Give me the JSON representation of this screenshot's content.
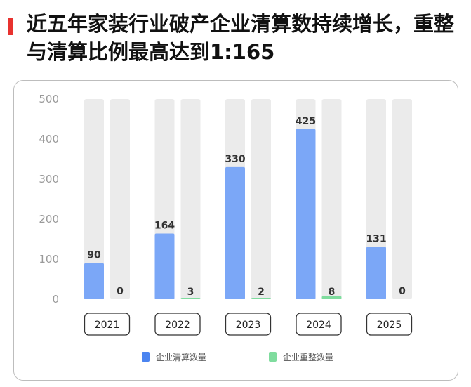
{
  "title": "近五年家装行业破产企业清算数持续增长，重整与清算比例最高达到1:165",
  "colors": {
    "accent": "#e8322f",
    "liquidation": "#7ba7f7",
    "reorganization": "#7fdc9e",
    "track": "#ebebeb",
    "legend_liquidation": "#4b84f0",
    "legend_reorganization": "#7fdc9e"
  },
  "chart_data": {
    "type": "bar",
    "categories": [
      "2021",
      "2022",
      "2023",
      "2024",
      "2025"
    ],
    "series": [
      {
        "name": "企业清算数量",
        "values": [
          90,
          164,
          330,
          425,
          131
        ]
      },
      {
        "name": "企业重整数量",
        "values": [
          0,
          3,
          2,
          8,
          0
        ]
      }
    ],
    "yticks": [
      0,
      100,
      200,
      300,
      400,
      500
    ],
    "ylim": [
      0,
      500
    ],
    "grid": false,
    "legend": "bottom"
  }
}
